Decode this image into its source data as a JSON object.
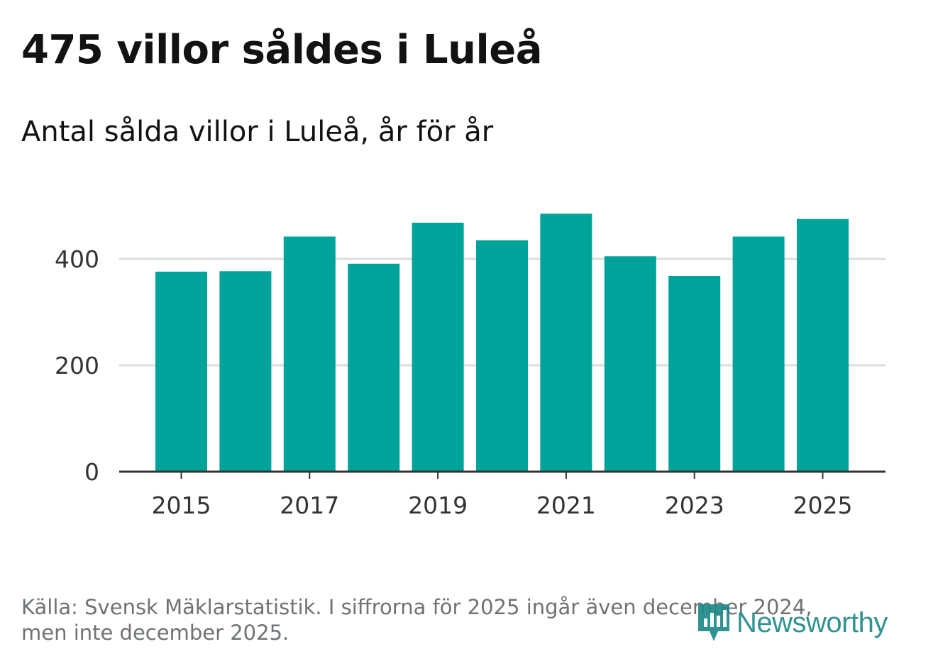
{
  "title": "475 villor såldes i Luleå",
  "subtitle": "Antal sålda villor i Luleå, år för år",
  "source_line1": "Källa: Svensk Mäklarstatistik. I siffrorna för 2025 ingår även december 2024,",
  "source_line2": "men inte december 2025.",
  "logo_text": "Newsworthy",
  "colors": {
    "bar": "#00a39a",
    "grid": "#dddddd",
    "axis": "#333333",
    "text": "#121212",
    "source": "#6f7376",
    "logo": "#1f8a88"
  },
  "chart_data": {
    "type": "bar",
    "title": "475 villor såldes i Luleå",
    "subtitle": "Antal sålda villor i Luleå, år för år",
    "categories": [
      "2015",
      "2016",
      "2017",
      "2018",
      "2019",
      "2020",
      "2021",
      "2022",
      "2023",
      "2024",
      "2025"
    ],
    "values": [
      376,
      377,
      442,
      391,
      468,
      435,
      485,
      405,
      368,
      442,
      475
    ],
    "xticks": [
      "2015",
      "2017",
      "2019",
      "2021",
      "2023",
      "2025"
    ],
    "yticks": [
      0,
      200,
      400
    ],
    "ylim": [
      0,
      500
    ],
    "xlabel": "",
    "ylabel": "",
    "grid": true
  }
}
